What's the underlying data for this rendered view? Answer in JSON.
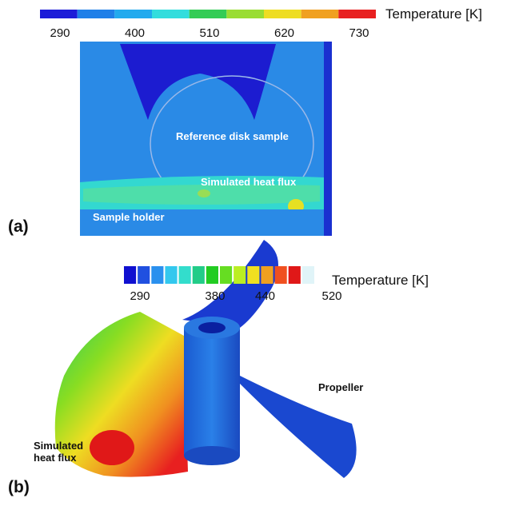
{
  "panels": [
    {
      "label": "(a)",
      "colorbar": {
        "title": "Temperature [K]",
        "ticks": [
          290,
          400,
          510,
          620,
          730
        ],
        "colors": [
          "#1c1cd8",
          "#1f7fe8",
          "#22aaee",
          "#33dddd",
          "#33cc55",
          "#99dd33",
          "#eedd22",
          "#f0a020",
          "#e82020"
        ]
      },
      "annotations": [
        "Reference disk sample",
        "Simulated heat flux",
        "Sample holder"
      ]
    },
    {
      "label": "(b)",
      "colorbar": {
        "title": "Temperature [K]",
        "ticks": [
          290,
          380,
          440,
          520
        ],
        "colors": [
          "#1010d0",
          "#2050e0",
          "#2a90ee",
          "#33c8ee",
          "#33ddcc",
          "#22cc88",
          "#22cc22",
          "#66dd22",
          "#bbee22",
          "#f0e020",
          "#f0a020",
          "#f05020",
          "#e01818",
          "#e0f4f8"
        ]
      },
      "annotations": [
        "Propeller",
        "Simulated heat flux"
      ]
    }
  ]
}
